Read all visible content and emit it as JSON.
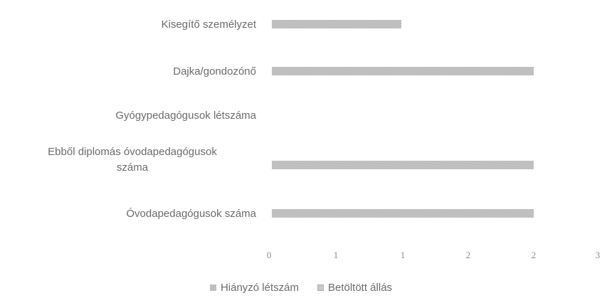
{
  "chart_data": {
    "type": "bar",
    "orientation": "horizontal",
    "categories": [
      "Kisegítő személyzet",
      "Dajka/gondozónő",
      "Gyógypedagógusok létszáma",
      "Ebből diplomás óvodapedagógusok száma",
      "Óvodapedagógusok száma"
    ],
    "category_labels": [
      [
        "Kisegítő személyzet"
      ],
      [
        "Dajka/gondozónő"
      ],
      [
        "Gyógypedagógusok létszáma"
      ],
      [
        "Ebből diplomás óvodapedagógusok",
        "száma"
      ],
      [
        "Óvodapedagógusok száma"
      ]
    ],
    "series": [
      {
        "name": "Hiányzó létszám",
        "values": [
          0,
          0,
          0,
          0,
          0
        ],
        "color": "#bfbfbf"
      },
      {
        "name": "Betöltött állás",
        "values": [
          1,
          2,
          0,
          2,
          2
        ],
        "color": "#c9c9c9"
      }
    ],
    "x_ticks": [
      "0",
      "1",
      "1",
      "2",
      "2",
      "3"
    ],
    "xlim": [
      0,
      2.5
    ],
    "grid": false,
    "legend": "bottom"
  }
}
